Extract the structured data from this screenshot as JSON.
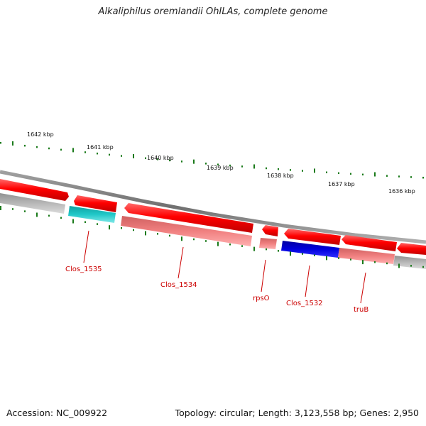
{
  "title": "Alkaliphilus oremlandii OhILAs, complete genome",
  "footer": {
    "accession": "Accession: NC_009922",
    "summary": "Topology: circular; Length: 3,123,558 bp; Genes: 2,950"
  },
  "ruler": {
    "labels": [
      "1642 kbp",
      "1641 kbp",
      "1640 kbp",
      "1639 kbp",
      "1638 kbp",
      "1637 kbp",
      "1636 kbp"
    ]
  },
  "gene_labels": [
    "Clos_1535",
    "Clos_1534",
    "rpsO",
    "Clos_1532",
    "truB"
  ],
  "colors": {
    "cds": "#ff0000",
    "cds_light": "#f08080",
    "backbone": "#808080",
    "gc_mark": "#1a7a1a",
    "label": "#cc0000",
    "cyan_feature": "#20c8c8",
    "blue_feature": "#0000dd",
    "gray_feature": "#b8b8b8"
  }
}
